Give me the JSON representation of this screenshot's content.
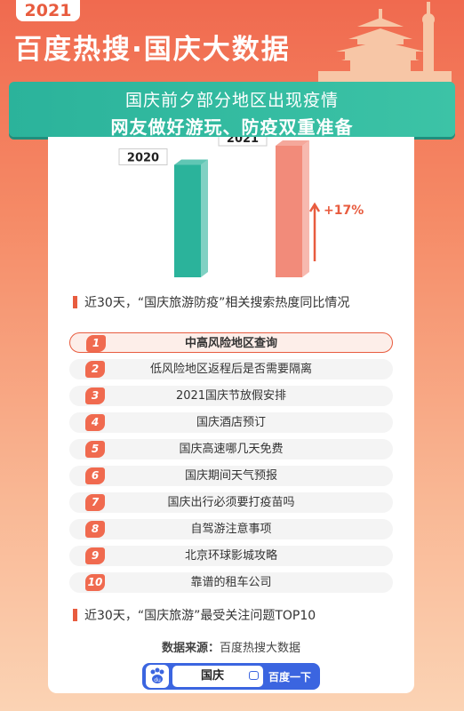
{
  "header": {
    "year": "2021",
    "title": "百度热搜·国庆大数据",
    "subtitle_line1": "国庆前夕部分地区出现疫情",
    "subtitle_line2": "网友做好游玩、防疫双重准备"
  },
  "chart_data": {
    "type": "bar",
    "categories": [
      "2020",
      "2021"
    ],
    "values": [
      100,
      117
    ],
    "annotation": "+17%",
    "colors": [
      "#2bb39b",
      "#f28b7a"
    ],
    "caption": "近30天，“国庆旅游防疫”相关搜索热度同比情况"
  },
  "ranking": {
    "caption": "近30天，“国庆旅游”最受关注问题TOP10",
    "items": [
      {
        "num": "1",
        "text": "中高风险地区查询"
      },
      {
        "num": "2",
        "text": "低风险地区返程后是否需要隔离"
      },
      {
        "num": "3",
        "text": "2021国庆节放假安排"
      },
      {
        "num": "4",
        "text": "国庆酒店预订"
      },
      {
        "num": "5",
        "text": "国庆高速哪几天免费"
      },
      {
        "num": "6",
        "text": "国庆期间天气预报"
      },
      {
        "num": "7",
        "text": "国庆出行必须要打疫苗吗"
      },
      {
        "num": "8",
        "text": "自驾游注意事项"
      },
      {
        "num": "9",
        "text": "北京环球影城攻略"
      },
      {
        "num": "10",
        "text": "靠谱的租车公司"
      }
    ]
  },
  "footer": {
    "source_label": "数据来源：",
    "source_value": "百度热搜大数据",
    "search_query": "国庆",
    "search_button": "百度一下",
    "logo_text": "du"
  }
}
